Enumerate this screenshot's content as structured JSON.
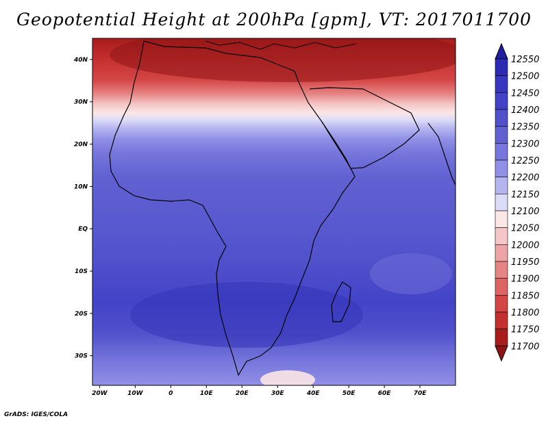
{
  "title": "Geopotential Height at 200hPa [gpm], VT: 2017011700",
  "credit": "GrADS: IGES/COLA",
  "map": {
    "lon_range": [
      -22,
      80
    ],
    "lat_range": [
      -37,
      45
    ],
    "lon_ticks": [
      {
        "v": -20,
        "label": "20W"
      },
      {
        "v": -10,
        "label": "10W"
      },
      {
        "v": 0,
        "label": "0"
      },
      {
        "v": 10,
        "label": "10E"
      },
      {
        "v": 20,
        "label": "20E"
      },
      {
        "v": 30,
        "label": "30E"
      },
      {
        "v": 40,
        "label": "40E"
      },
      {
        "v": 50,
        "label": "50E"
      },
      {
        "v": 60,
        "label": "60E"
      },
      {
        "v": 70,
        "label": "70E"
      }
    ],
    "lat_ticks": [
      {
        "v": 40,
        "label": "40N"
      },
      {
        "v": 30,
        "label": "30N"
      },
      {
        "v": 20,
        "label": "20N"
      },
      {
        "v": 10,
        "label": "10N"
      },
      {
        "v": 0,
        "label": "EQ"
      },
      {
        "v": -10,
        "label": "10S"
      },
      {
        "v": -20,
        "label": "20S"
      },
      {
        "v": -30,
        "label": "30S"
      }
    ]
  },
  "colorbar": {
    "labels": [
      "12550",
      "12500",
      "12450",
      "12400",
      "12350",
      "12300",
      "12250",
      "12200",
      "12150",
      "12100",
      "12050",
      "12000",
      "11950",
      "11900",
      "11850",
      "11800",
      "11750",
      "11700"
    ],
    "colors": [
      "#1f1ea0",
      "#2b2bb4",
      "#3737c0",
      "#4343c8",
      "#5151cc",
      "#6161d2",
      "#7676dc",
      "#9090e6",
      "#b4b4f0",
      "#dcdcf8",
      "#fbe6e6",
      "#f5c6c6",
      "#eea4a4",
      "#e68484",
      "#de6464",
      "#d44646",
      "#c42f2f",
      "#a81c1c",
      "#8f1515"
    ]
  }
}
